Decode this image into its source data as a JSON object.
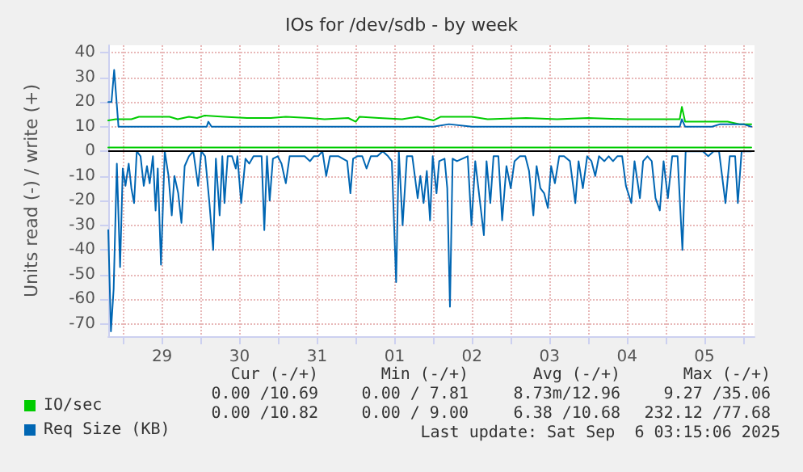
{
  "chart_data": {
    "type": "line",
    "title": "IOs for /dev/sdb - by week",
    "ylabel": "Units read (-) / write (+)",
    "xlim": [
      "2025-08-28T19:20",
      "2025-09-06T03:30"
    ],
    "ylim": [
      -75,
      43
    ],
    "xticks": [
      {
        "value": "2025-08-29T00:00",
        "label": null
      },
      {
        "value": "2025-08-29T12:00",
        "label": "29"
      },
      {
        "value": "2025-08-30T00:00",
        "label": null
      },
      {
        "value": "2025-08-30T12:00",
        "label": "30"
      },
      {
        "value": "2025-08-31T00:00",
        "label": null
      },
      {
        "value": "2025-08-31T12:00",
        "label": "31"
      },
      {
        "value": "2025-09-01T00:00",
        "label": null
      },
      {
        "value": "2025-09-01T12:00",
        "label": "01"
      },
      {
        "value": "2025-09-02T00:00",
        "label": null
      },
      {
        "value": "2025-09-02T12:00",
        "label": "02"
      },
      {
        "value": "2025-09-03T00:00",
        "label": null
      },
      {
        "value": "2025-09-03T12:00",
        "label": "03"
      },
      {
        "value": "2025-09-04T00:00",
        "label": null
      },
      {
        "value": "2025-09-04T12:00",
        "label": "04"
      },
      {
        "value": "2025-09-05T00:00",
        "label": null
      },
      {
        "value": "2025-09-05T12:00",
        "label": "05"
      },
      {
        "value": "2025-09-06T00:00",
        "label": null
      }
    ],
    "yticks": [
      -70,
      -60,
      -50,
      -40,
      -30,
      -20,
      -10,
      0,
      10,
      20,
      30,
      40
    ],
    "grid": true,
    "legend": "bottom left",
    "marker": "none",
    "line_style": "solid",
    "ref_lines": [
      {
        "axis": "y",
        "value": 0,
        "color": "#000000"
      }
    ],
    "series": [
      {
        "name": "IO/sec",
        "color": "#00cc00",
        "x": [
          "2025-08-28T19:20",
          "2025-08-28T21:40",
          "2025-08-29T02:30",
          "2025-08-29T04:50",
          "2025-08-29T14:20",
          "2025-08-29T16:50",
          "2025-08-29T20:20",
          "2025-08-29T22:50",
          "2025-08-30T01:10",
          "2025-08-30T07:10",
          "2025-08-30T14:20",
          "2025-08-30T21:40",
          "2025-08-31T02:20",
          "2025-08-31T09:40",
          "2025-08-31T14:20",
          "2025-08-31T21:40",
          "2025-09-01T00:00",
          "2025-09-01T01:10",
          "2025-09-01T07:10",
          "2025-09-01T14:20",
          "2025-09-01T19:10",
          "2025-09-02T00:00",
          "2025-09-02T02:20",
          "2025-09-02T12:00",
          "2025-09-02T16:50",
          "2025-09-03T04:50",
          "2025-09-03T14:20",
          "2025-09-04T00:00",
          "2025-09-04T12:00",
          "2025-09-05T00:00",
          "2025-09-05T04:20",
          "2025-09-05T05:00",
          "2025-09-05T06:00",
          "2025-09-05T14:20",
          "2025-09-05T19:10",
          "2025-09-05T22:50",
          "2025-09-06T02:30"
        ],
        "values": [
          12.5,
          13,
          13,
          14,
          14,
          13,
          14,
          13.5,
          14.5,
          14,
          13.5,
          13.5,
          14,
          13.5,
          13,
          13.5,
          12,
          14,
          13.5,
          13,
          14,
          12.5,
          14,
          14,
          13,
          13.5,
          13,
          13.5,
          13,
          13,
          13,
          18,
          12,
          12,
          12,
          11,
          11
        ]
      },
      {
        "color": "#00cc00",
        "x": [
          "2025-08-28T19:20",
          "2025-09-06T02:30"
        ],
        "values": [
          1.5,
          1.5
        ]
      },
      {
        "name": "Req Size (KB)",
        "color": "#0066b3",
        "x": [
          "2025-08-28T19:20",
          "2025-08-28T20:20",
          "2025-08-28T21:10",
          "2025-08-28T22:30",
          "2025-08-29T07:10",
          "2025-08-29T14:20",
          "2025-08-30T01:50",
          "2025-08-30T02:20",
          "2025-08-30T03:20",
          "2025-08-31T00:00",
          "2025-09-01T00:00",
          "2025-09-02T00:00",
          "2025-09-02T04:50",
          "2025-09-02T12:00",
          "2025-09-03T12:00",
          "2025-09-04T12:00",
          "2025-09-05T04:20",
          "2025-09-05T05:00",
          "2025-09-05T06:00",
          "2025-09-05T14:20",
          "2025-09-05T16:50",
          "2025-09-06T00:00",
          "2025-09-06T02:30"
        ],
        "values": [
          20,
          20,
          33,
          10,
          10,
          10,
          10,
          12,
          10,
          10,
          10,
          10,
          11,
          10,
          10,
          10,
          10,
          13,
          10,
          10,
          11,
          11,
          10
        ]
      },
      {
        "color": "#0066b3",
        "x": [
          "2025-08-28T19:20",
          "2025-08-28T20:10",
          "2025-08-28T21:00",
          "2025-08-28T22:00",
          "2025-08-28T23:00",
          "2025-08-28T23:50",
          "2025-08-29T00:40",
          "2025-08-29T01:40",
          "2025-08-29T02:30",
          "2025-08-29T03:20",
          "2025-08-29T04:10",
          "2025-08-29T05:20",
          "2025-08-29T06:20",
          "2025-08-29T07:20",
          "2025-08-29T08:10",
          "2025-08-29T09:10",
          "2025-08-29T10:00",
          "2025-08-29T10:40",
          "2025-08-29T11:40",
          "2025-08-29T12:50",
          "2025-08-29T14:00",
          "2025-08-29T15:00",
          "2025-08-29T15:50",
          "2025-08-29T17:00",
          "2025-08-29T18:00",
          "2025-08-29T19:00",
          "2025-08-29T20:20",
          "2025-08-29T21:40",
          "2025-08-29T23:10",
          "2025-08-30T00:10",
          "2025-08-30T01:20",
          "2025-08-30T02:40",
          "2025-08-30T03:50",
          "2025-08-30T04:40",
          "2025-08-30T05:50",
          "2025-08-30T06:40",
          "2025-08-30T07:20",
          "2025-08-30T08:20",
          "2025-08-30T09:40",
          "2025-08-30T10:50",
          "2025-08-30T11:20",
          "2025-08-30T12:30",
          "2025-08-30T13:50",
          "2025-08-30T15:00",
          "2025-08-30T16:20",
          "2025-08-30T17:40",
          "2025-08-30T18:50",
          "2025-08-30T19:40",
          "2025-08-30T20:30",
          "2025-08-30T21:20",
          "2025-08-30T22:20",
          "2025-08-30T23:50",
          "2025-08-31T01:00",
          "2025-08-31T02:20",
          "2025-08-31T03:30",
          "2025-08-31T04:50",
          "2025-08-31T06:30",
          "2025-08-31T08:10",
          "2025-08-31T09:50",
          "2025-08-31T11:00",
          "2025-08-31T12:20",
          "2025-08-31T13:40",
          "2025-08-31T14:50",
          "2025-08-31T16:00",
          "2025-08-31T17:20",
          "2025-08-31T18:40",
          "2025-08-31T20:00",
          "2025-08-31T21:20",
          "2025-08-31T22:20",
          "2025-08-31T23:10",
          "2025-09-01T00:30",
          "2025-09-01T02:00",
          "2025-09-01T03:20",
          "2025-09-01T04:40",
          "2025-09-01T06:40",
          "2025-09-01T08:20",
          "2025-09-01T10:00",
          "2025-09-01T11:10",
          "2025-09-01T12:30",
          "2025-09-01T13:20",
          "2025-09-01T14:30",
          "2025-09-01T15:50",
          "2025-09-01T17:30",
          "2025-09-01T19:10",
          "2025-09-01T20:00",
          "2025-09-01T21:00",
          "2025-09-01T22:00",
          "2025-09-01T23:00",
          "2025-09-01T23:50",
          "2025-09-02T01:00",
          "2025-09-02T01:50",
          "2025-09-02T03:30",
          "2025-09-02T04:20",
          "2025-09-02T05:10",
          "2025-09-02T06:00",
          "2025-09-02T07:20",
          "2025-09-02T09:00",
          "2025-09-02T10:40",
          "2025-09-02T11:50",
          "2025-09-02T13:00",
          "2025-09-02T14:20",
          "2025-09-02T15:40",
          "2025-09-02T16:30",
          "2025-09-02T17:40",
          "2025-09-02T18:40",
          "2025-09-02T20:10",
          "2025-09-02T21:20",
          "2025-09-02T22:40",
          "2025-09-03T00:00",
          "2025-09-03T01:10",
          "2025-09-03T02:50",
          "2025-09-03T04:30",
          "2025-09-03T05:40",
          "2025-09-03T07:00",
          "2025-09-03T08:00",
          "2025-09-03T09:10",
          "2025-09-03T10:20",
          "2025-09-03T11:30",
          "2025-09-03T12:30",
          "2025-09-03T13:40",
          "2025-09-03T15:00",
          "2025-09-03T16:30",
          "2025-09-03T18:20",
          "2025-09-03T20:00",
          "2025-09-03T21:00",
          "2025-09-03T22:20",
          "2025-09-03T23:40",
          "2025-09-04T01:00",
          "2025-09-04T02:10",
          "2025-09-04T03:20",
          "2025-09-04T05:00",
          "2025-09-04T06:20",
          "2025-09-04T07:40",
          "2025-09-04T09:00",
          "2025-09-04T10:30",
          "2025-09-04T11:40",
          "2025-09-04T13:20",
          "2025-09-04T14:20",
          "2025-09-04T16:00",
          "2025-09-04T17:00",
          "2025-09-04T18:20",
          "2025-09-04T19:40",
          "2025-09-04T20:50",
          "2025-09-04T22:10",
          "2025-09-04T23:20",
          "2025-09-05T00:40",
          "2025-09-05T02:00",
          "2025-09-05T03:40",
          "2025-09-05T05:10",
          "2025-09-05T06:10",
          "2025-09-05T08:10",
          "2025-09-05T09:50",
          "2025-09-05T11:30",
          "2025-09-05T13:10",
          "2025-09-05T14:50",
          "2025-09-05T16:30",
          "2025-09-05T18:30",
          "2025-09-05T19:50",
          "2025-09-05T21:30",
          "2025-09-05T22:20",
          "2025-09-05T23:30",
          "2025-09-06T00:50",
          "2025-09-06T02:30"
        ],
        "values": [
          -32,
          -73,
          -56,
          -5,
          -47,
          -7,
          -14,
          -5,
          -15,
          -21,
          0,
          -2,
          -14,
          -6,
          -13,
          -2,
          -24,
          -7,
          -46,
          0,
          -10,
          -26,
          -10,
          -17,
          -29,
          -6,
          -2,
          0,
          -14,
          0,
          -2,
          -21,
          -40,
          -3,
          -26,
          -2,
          -21,
          -2,
          -2,
          -7,
          -2,
          -21,
          -3,
          -5,
          -2,
          -2,
          -2,
          -32,
          -2,
          -20,
          -3,
          -2,
          -5,
          -13,
          -2,
          -2,
          -2,
          -2,
          -4,
          -2,
          -2,
          0,
          -10,
          -2,
          -2,
          -2,
          -3,
          -4,
          -17,
          -3,
          -2,
          -2,
          -7,
          -2,
          -2,
          0,
          -2,
          -4,
          -53,
          0,
          -30,
          -2,
          -2,
          -19,
          -10,
          -21,
          -8,
          -28,
          -2,
          -17,
          -4,
          -3,
          -15,
          -63,
          -3,
          -4,
          -3,
          -2,
          -30,
          -4,
          -19,
          -34,
          -4,
          -21,
          -2,
          -2,
          -28,
          -6,
          -15,
          -4,
          -2,
          -2,
          -8,
          -26,
          -6,
          -15,
          -17,
          -23,
          -6,
          -13,
          -2,
          -2,
          -4,
          -21,
          -4,
          -15,
          -2,
          -4,
          -10,
          -2,
          -4,
          -2,
          -4,
          -2,
          -2,
          -14,
          -21,
          -4,
          -19,
          -4,
          -2,
          -4,
          -19,
          -24,
          -4,
          -19,
          -2,
          -2,
          -40,
          0,
          0,
          0,
          0,
          -2,
          0,
          0,
          -21,
          -2,
          -2,
          -21,
          0,
          0,
          0
        ]
      }
    ],
    "annotations": [
      "Cur (-/+)",
      "Min (-/+)",
      "Avg (-/+)",
      "Max (-/+)",
      "0.00 /10.69",
      "0.00 / 7.81",
      "8.73m/12.96",
      "9.27 /35.06",
      "0.00 /10.82",
      "0.00 / 9.00",
      "6.38 /10.68",
      "232.12 /77.68",
      "Last update: Sat Sep  6 03:15:06 2025"
    ]
  }
}
